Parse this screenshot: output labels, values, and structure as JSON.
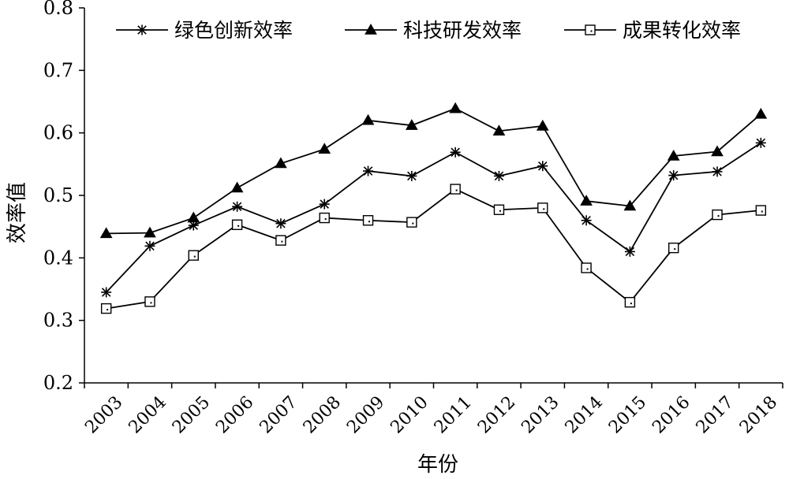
{
  "chart_data": {
    "type": "line",
    "title": "",
    "xlabel": "年份",
    "ylabel": "效率值",
    "ylim": [
      0.2,
      0.8
    ],
    "yticks": [
      "0.2",
      "0.3",
      "0.4",
      "0.5",
      "0.6",
      "0.7",
      "0.8"
    ],
    "categories": [
      "2003",
      "2004",
      "2005",
      "2006",
      "2007",
      "2008",
      "2009",
      "2010",
      "2011",
      "2012",
      "2013",
      "2014",
      "2015",
      "2016",
      "2017",
      "2018"
    ],
    "grid": false,
    "legend_position": "top",
    "series": [
      {
        "name": "绿色创新效率",
        "marker": "asterisk",
        "color": "#000000",
        "values": [
          0.345,
          0.419,
          0.452,
          0.482,
          0.455,
          0.486,
          0.539,
          0.531,
          0.569,
          0.531,
          0.547,
          0.46,
          0.41,
          0.532,
          0.538,
          0.584
        ]
      },
      {
        "name": "科技研发效率",
        "marker": "triangle",
        "color": "#000000",
        "values": [
          0.439,
          0.44,
          0.464,
          0.512,
          0.551,
          0.574,
          0.62,
          0.612,
          0.639,
          0.603,
          0.611,
          0.491,
          0.483,
          0.563,
          0.57,
          0.63
        ]
      },
      {
        "name": "成果转化效率",
        "marker": "square-open",
        "color": "#000000",
        "values": [
          0.319,
          0.33,
          0.404,
          0.453,
          0.428,
          0.464,
          0.46,
          0.457,
          0.51,
          0.477,
          0.48,
          0.384,
          0.329,
          0.416,
          0.469,
          0.476
        ]
      }
    ]
  }
}
